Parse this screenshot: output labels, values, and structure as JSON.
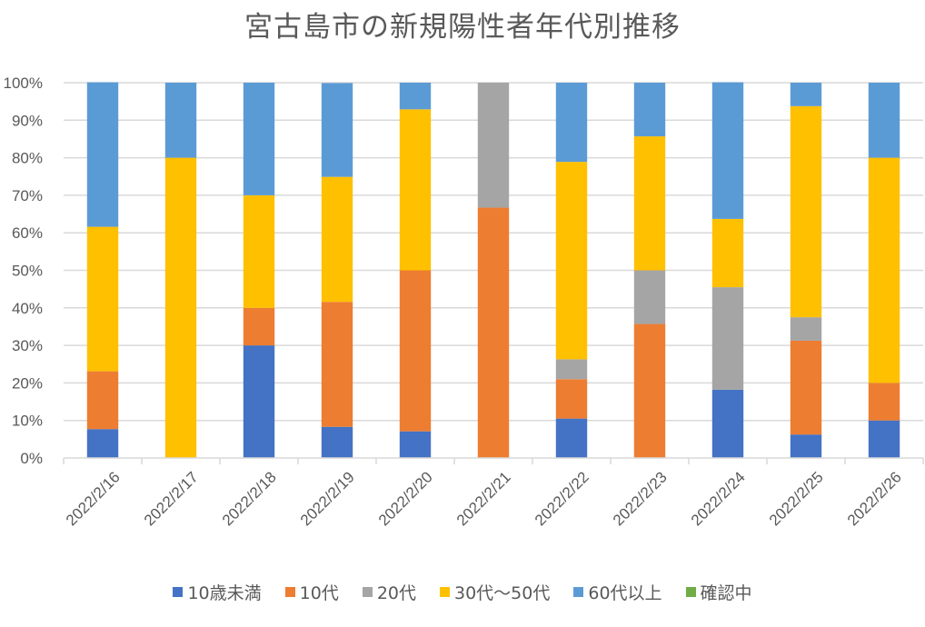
{
  "chart_data": {
    "type": "bar",
    "stacked": "percent",
    "title": "宮古島市の新規陽性者年代別推移",
    "xlabel": "",
    "ylabel": "",
    "ylim": [
      0,
      100
    ],
    "y_ticks": [
      "0%",
      "10%",
      "20%",
      "30%",
      "40%",
      "50%",
      "60%",
      "70%",
      "80%",
      "90%",
      "100%"
    ],
    "grid": true,
    "legend_position": "bottom",
    "categories": [
      "2022/2/16",
      "2022/2/17",
      "2022/2/18",
      "2022/2/19",
      "2022/2/20",
      "2022/2/21",
      "2022/2/22",
      "2022/2/23",
      "2022/2/24",
      "2022/2/25",
      "2022/2/26"
    ],
    "series": [
      {
        "name": "10歳未満",
        "color": "#4472C4",
        "values": [
          7.7,
          0,
          30,
          8.3,
          7.1,
          0,
          10.5,
          0,
          18.2,
          6.25,
          10
        ]
      },
      {
        "name": "10代",
        "color": "#ED7D31",
        "values": [
          15.4,
          0,
          10,
          33.3,
          42.9,
          66.7,
          10.5,
          35.7,
          0,
          25,
          10
        ]
      },
      {
        "name": "20代",
        "color": "#A5A5A5",
        "values": [
          0,
          0,
          0,
          0,
          0,
          33.3,
          5.3,
          14.3,
          27.3,
          6.25,
          0
        ]
      },
      {
        "name": "30代〜50代",
        "color": "#FFC000",
        "values": [
          38.5,
          80,
          30,
          33.3,
          42.9,
          0,
          52.6,
          35.7,
          18.2,
          56.25,
          60
        ]
      },
      {
        "name": "60代以上",
        "color": "#5B9BD5",
        "values": [
          38.5,
          20,
          30,
          25,
          7.1,
          0,
          21.1,
          14.3,
          36.4,
          6.25,
          20
        ]
      },
      {
        "name": "確認中",
        "color": "#70AD47",
        "values": [
          0,
          0,
          0,
          0,
          0,
          0,
          0,
          0,
          0,
          0,
          0
        ]
      }
    ]
  }
}
